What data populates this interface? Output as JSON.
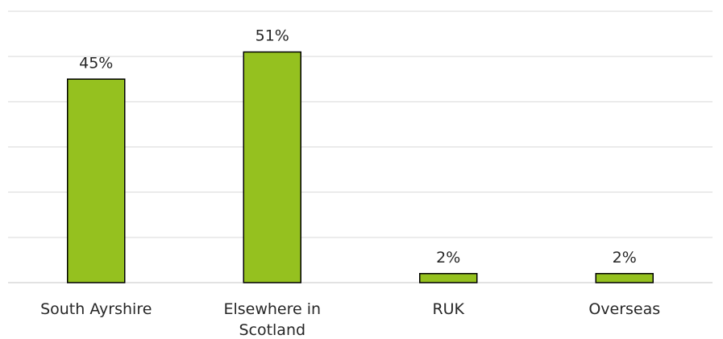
{
  "chart_data": {
    "type": "bar",
    "categories": [
      [
        "South Ayrshire"
      ],
      [
        "Elsewhere in",
        "Scotland"
      ],
      [
        "RUK"
      ],
      [
        "Overseas"
      ]
    ],
    "values": [
      45,
      51,
      2,
      2
    ],
    "data_labels": [
      "45%",
      "51%",
      "2%",
      "2%"
    ],
    "ylim": [
      0,
      60
    ],
    "grid": true,
    "bar_color": "#95c11f",
    "bar_edge_color": "#000000",
    "grid_color": "#d9d9d9",
    "text_color": "#262626"
  }
}
